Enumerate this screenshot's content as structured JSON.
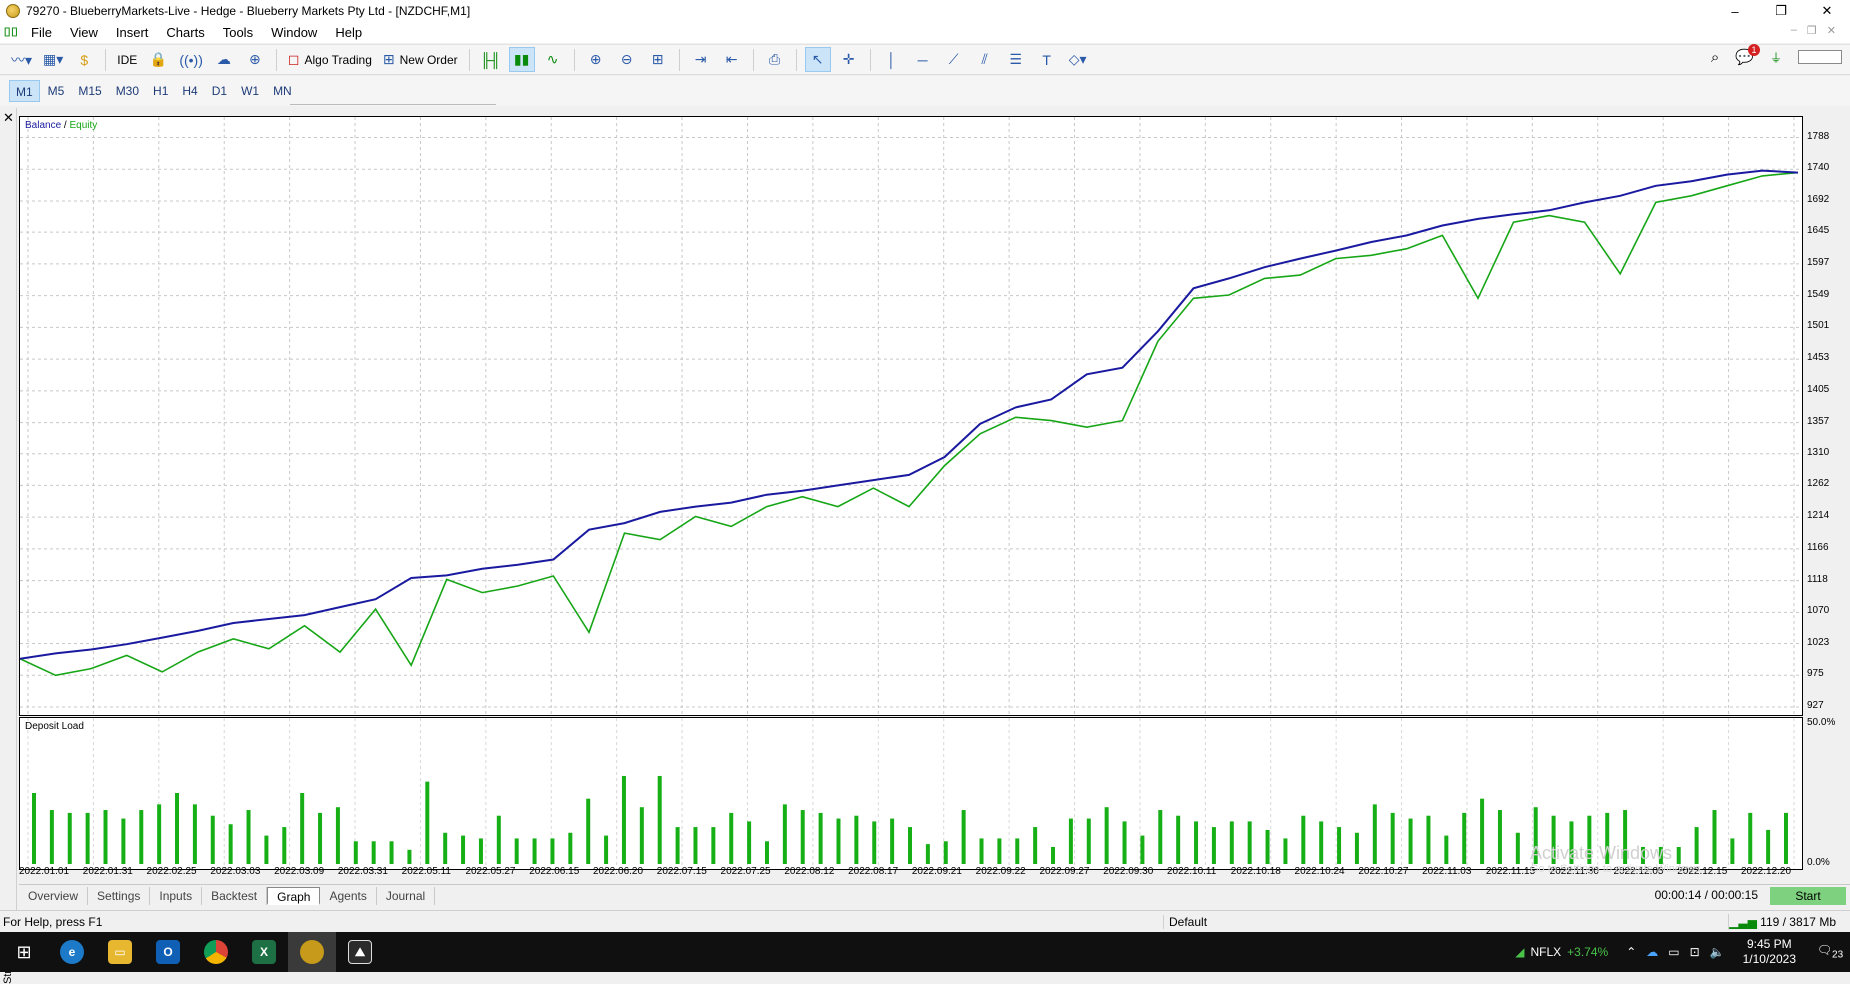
{
  "window": {
    "title": "79270 - BlueberryMarkets-Live - Hedge - Blueberry Markets Pty Ltd - [NZDCHF,M1]",
    "controls": [
      "–",
      "❐",
      "✕"
    ],
    "mdi_controls": [
      "–",
      "❐",
      "✕"
    ]
  },
  "menu": {
    "items": [
      "File",
      "View",
      "Insert",
      "Charts",
      "Tools",
      "Window",
      "Help"
    ]
  },
  "toolbar": {
    "ide_label": "IDE",
    "algo_trading_label": "Algo Trading",
    "new_order_label": "New Order"
  },
  "timeframes": {
    "items": [
      "M1",
      "M5",
      "M15",
      "M30",
      "H1",
      "H4",
      "D1",
      "W1",
      "MN"
    ],
    "active": "M1"
  },
  "notifications": {
    "count": "1"
  },
  "chart": {
    "legend_balance": "Balance",
    "legend_separator": " / ",
    "legend_equity": "Equity",
    "balance_color": "#1a1aa0",
    "equity_color": "#16a616",
    "y_ticks": [
      "1788",
      "1740",
      "1692",
      "1645",
      "1597",
      "1549",
      "1501",
      "1453",
      "1405",
      "1357",
      "1310",
      "1262",
      "1214",
      "1166",
      "1118",
      "1070",
      "1023",
      "975",
      "927"
    ],
    "x_ticks": [
      "2022.01.01",
      "2022.01.31",
      "2022.02.25",
      "2022.03.03",
      "2022.03.09",
      "2022.03.31",
      "2022.05.11",
      "2022.05.27",
      "2022.06.15",
      "2022.06.20",
      "2022.07.15",
      "2022.07.25",
      "2022.08.12",
      "2022.08.17",
      "2022.09.21",
      "2022.09.22",
      "2022.09.27",
      "2022.09.30",
      "2022.10.11",
      "2022.10.18",
      "2022.10.24",
      "2022.10.27",
      "2022.11.03",
      "2022.11.15",
      "2022.11.30",
      "2022.12.05",
      "2022.12.15",
      "2022.12.20"
    ]
  },
  "chart_data": [
    {
      "type": "line",
      "title": "Balance / Equity",
      "ylim": [
        927,
        1810
      ],
      "x": [
        0,
        0.02,
        0.04,
        0.06,
        0.08,
        0.1,
        0.12,
        0.14,
        0.16,
        0.18,
        0.2,
        0.22,
        0.24,
        0.26,
        0.28,
        0.3,
        0.32,
        0.34,
        0.36,
        0.38,
        0.4,
        0.42,
        0.44,
        0.46,
        0.48,
        0.5,
        0.52,
        0.54,
        0.56,
        0.58,
        0.6,
        0.62,
        0.64,
        0.66,
        0.68,
        0.7,
        0.72,
        0.74,
        0.76,
        0.78,
        0.8,
        0.82,
        0.84,
        0.86,
        0.88,
        0.9,
        0.92,
        0.94,
        0.96,
        0.98,
        1.0
      ],
      "series": [
        {
          "name": "Balance",
          "values": [
            1000,
            1008,
            1014,
            1022,
            1032,
            1042,
            1054,
            1060,
            1066,
            1078,
            1090,
            1122,
            1126,
            1136,
            1142,
            1150,
            1195,
            1205,
            1222,
            1230,
            1236,
            1248,
            1254,
            1262,
            1270,
            1278,
            1305,
            1355,
            1380,
            1392,
            1430,
            1440,
            1495,
            1560,
            1575,
            1592,
            1605,
            1617,
            1630,
            1640,
            1655,
            1665,
            1672,
            1678,
            1690,
            1700,
            1715,
            1722,
            1732,
            1738,
            1735
          ]
        },
        {
          "name": "Equity",
          "values": [
            1000,
            975,
            985,
            1005,
            980,
            1010,
            1030,
            1015,
            1050,
            1010,
            1075,
            990,
            1120,
            1100,
            1110,
            1125,
            1040,
            1190,
            1180,
            1215,
            1200,
            1230,
            1245,
            1230,
            1258,
            1230,
            1292,
            1340,
            1365,
            1360,
            1350,
            1360,
            1480,
            1545,
            1550,
            1575,
            1580,
            1605,
            1610,
            1620,
            1640,
            1545,
            1660,
            1670,
            1660,
            1582,
            1690,
            1700,
            1715,
            1730,
            1735
          ]
        }
      ]
    },
    {
      "type": "bar",
      "title": "Deposit Load",
      "ylim": [
        0,
        50
      ],
      "y_ticks": [
        "50.0%",
        "0.0%"
      ],
      "values": [
        25,
        19,
        18,
        18,
        19,
        16,
        19,
        21,
        25,
        21,
        17,
        14,
        19,
        10,
        13,
        25,
        18,
        20,
        8,
        8,
        8,
        5,
        29,
        11,
        10,
        9,
        17,
        9,
        9,
        9,
        11,
        23,
        10,
        31,
        20,
        31,
        13,
        13,
        13,
        18,
        15,
        8,
        21,
        19,
        18,
        16,
        17,
        15,
        16,
        13,
        7,
        8,
        19,
        9,
        9,
        9,
        13,
        6,
        16,
        16,
        20,
        15,
        10,
        19,
        17,
        15,
        13,
        15,
        15,
        12,
        9,
        17,
        15,
        13,
        11,
        21,
        18,
        16,
        17,
        10,
        18,
        23,
        19,
        11,
        20,
        17,
        15,
        17,
        18,
        19,
        6,
        6,
        6,
        13,
        19,
        9,
        18,
        12,
        18
      ]
    }
  ],
  "tabs": {
    "items": [
      "Overview",
      "Settings",
      "Inputs",
      "Backtest",
      "Graph",
      "Agents",
      "Journal"
    ],
    "active": "Graph"
  },
  "tester": {
    "side_label": "Strategy Tester",
    "timer": "00:00:14 / 00:00:15",
    "start_label": "Start"
  },
  "status": {
    "help": "For Help, press F1",
    "profile": "Default",
    "memory": "119 / 3817 Mb"
  },
  "watermark": {
    "line1": "Activate Windows",
    "line2": "Go to Settings to activate Windows."
  },
  "taskbar": {
    "stock_name": "NFLX",
    "stock_change": "+3.74%",
    "time": "9:45 PM",
    "date": "1/10/2023",
    "notification_count": "23"
  }
}
